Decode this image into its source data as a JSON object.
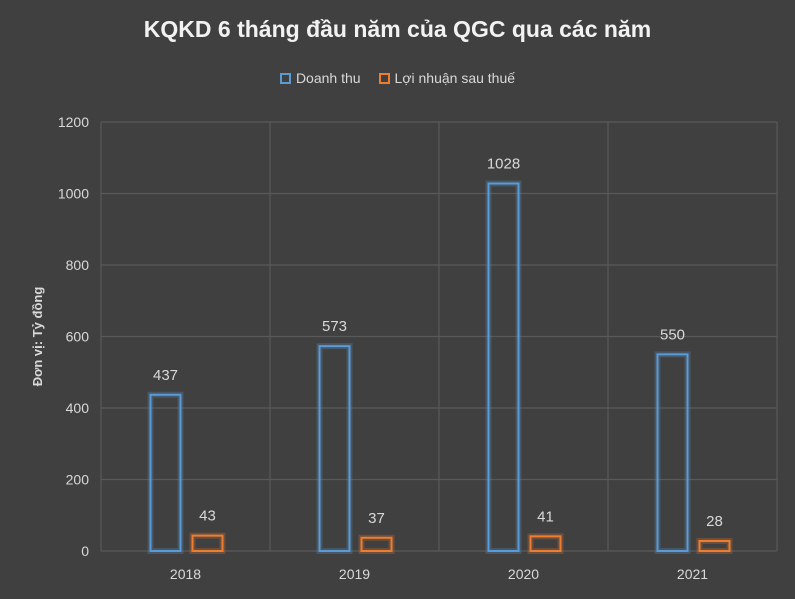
{
  "chart_data": {
    "type": "bar",
    "title": "KQKD 6 tháng đầu năm của QGC qua các năm",
    "ylabel": "Đơn vị: Tỷ đồng",
    "xlabel": "",
    "categories": [
      "2018",
      "2019",
      "2020",
      "2021"
    ],
    "series": [
      {
        "name": "Doanh thu",
        "values": [
          437,
          573,
          1028,
          550
        ],
        "color": "#5b9bd5"
      },
      {
        "name": "Lợi nhuận sau thuế",
        "values": [
          43,
          37,
          41,
          28
        ],
        "color": "#ed7d31"
      }
    ],
    "ylim": [
      0,
      1200
    ],
    "yticks": [
      0,
      200,
      400,
      600,
      800,
      1000,
      1200
    ],
    "grid": true,
    "legend_position": "top",
    "background": "#404040",
    "gridline_color": "#595959"
  }
}
